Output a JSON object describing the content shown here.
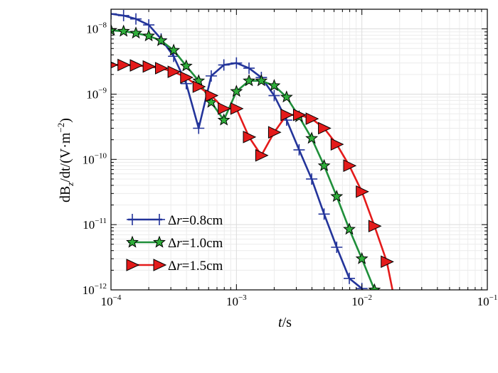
{
  "chart_data": {
    "type": "line",
    "xscale": "log",
    "yscale": "log",
    "xlim": [
      0.0001,
      0.1
    ],
    "ylim": [
      1e-12,
      2e-08
    ],
    "grid": true,
    "legend_position": "bottom-left",
    "xlabel": {
      "italic": "t",
      "rest": "/s"
    },
    "ylabel": {
      "prefix": "dB",
      "sub": "z",
      "mid": "/dt/(V·m",
      "sup": "−2",
      "suffix": ")"
    },
    "x_ticks": [
      {
        "value": 0.0001,
        "base": "10",
        "exp": "−4"
      },
      {
        "value": 0.001,
        "base": "10",
        "exp": "−3"
      },
      {
        "value": 0.01,
        "base": "10",
        "exp": "−2"
      },
      {
        "value": 0.1,
        "base": "10",
        "exp": "−1"
      }
    ],
    "y_ticks": [
      {
        "value": 1e-08,
        "base": "10",
        "exp": "−8"
      },
      {
        "value": 1e-09,
        "base": "10",
        "exp": "−9"
      },
      {
        "value": 1e-10,
        "base": "10",
        "exp": "−10"
      },
      {
        "value": 1e-11,
        "base": "10",
        "exp": "−11"
      },
      {
        "value": 1e-12,
        "base": "10",
        "exp": "−12"
      }
    ],
    "series": [
      {
        "name": "Δr=0.8cm",
        "legend_prefix": "Δ",
        "legend_italic": "r",
        "legend_rest": "=0.8cm",
        "color": "#23349a",
        "marker": "plus",
        "x": [
          0.0001,
          0.000126,
          0.000158,
          0.0002,
          0.000251,
          0.000316,
          0.000398,
          0.0005,
          0.00063,
          0.000794,
          0.001,
          0.00126,
          0.00158,
          0.002,
          0.00251,
          0.00316,
          0.00398,
          0.005,
          0.0063,
          0.00794,
          0.01,
          0.0112
        ],
        "y": [
          1.7e-08,
          1.6e-08,
          1.42e-08,
          1.15e-08,
          7e-09,
          3.8e-09,
          1.45e-09,
          3e-10,
          1.9e-09,
          2.8e-09,
          3e-09,
          2.5e-09,
          1.8e-09,
          9.5e-10,
          4e-10,
          1.4e-10,
          5e-11,
          1.45e-11,
          4.5e-12,
          1.5e-12,
          1.05e-12,
          5e-13
        ]
      },
      {
        "name": "Δr=1.0cm",
        "legend_prefix": "Δ",
        "legend_italic": "r",
        "legend_rest": "=1.0cm",
        "color": "#1f8f3a",
        "marker": "star",
        "x": [
          0.0001,
          0.000126,
          0.000158,
          0.0002,
          0.000251,
          0.000316,
          0.000398,
          0.0005,
          0.00063,
          0.000794,
          0.001,
          0.00126,
          0.00158,
          0.002,
          0.00251,
          0.00316,
          0.00398,
          0.005,
          0.0063,
          0.00794,
          0.01,
          0.0126,
          0.0136
        ],
        "y": [
          9.5e-09,
          9.2e-09,
          8.6e-09,
          7.8e-09,
          6.6e-09,
          4.7e-09,
          2.7e-09,
          1.6e-09,
          7.5e-10,
          4e-10,
          1.1e-09,
          1.6e-09,
          1.6e-09,
          1.35e-09,
          9e-10,
          4.5e-10,
          2.1e-10,
          8e-11,
          2.7e-11,
          8.5e-12,
          3e-12,
          1e-12,
          6e-13
        ]
      },
      {
        "name": "Δr=1.5cm",
        "legend_prefix": "Δ",
        "legend_italic": "r",
        "legend_rest": "=1.5cm",
        "color": "#e41a1a",
        "marker": "triangle",
        "x": [
          0.0001,
          0.000126,
          0.000158,
          0.0002,
          0.000251,
          0.000316,
          0.000398,
          0.0005,
          0.00063,
          0.000794,
          0.001,
          0.00126,
          0.00158,
          0.002,
          0.00251,
          0.00316,
          0.00398,
          0.005,
          0.0063,
          0.00794,
          0.01,
          0.0126,
          0.0158,
          0.0182
        ],
        "y": [
          2.8e-09,
          2.8e-09,
          2.75e-09,
          2.65e-09,
          2.5e-09,
          2.2e-09,
          1.8e-09,
          1.3e-09,
          9.5e-10,
          6e-10,
          6e-10,
          2.2e-10,
          1.15e-10,
          2.6e-10,
          4.8e-10,
          4.8e-10,
          4.2e-10,
          3e-10,
          1.7e-10,
          8e-11,
          3.2e-11,
          9.5e-12,
          2.7e-12,
          7e-13
        ]
      }
    ]
  }
}
